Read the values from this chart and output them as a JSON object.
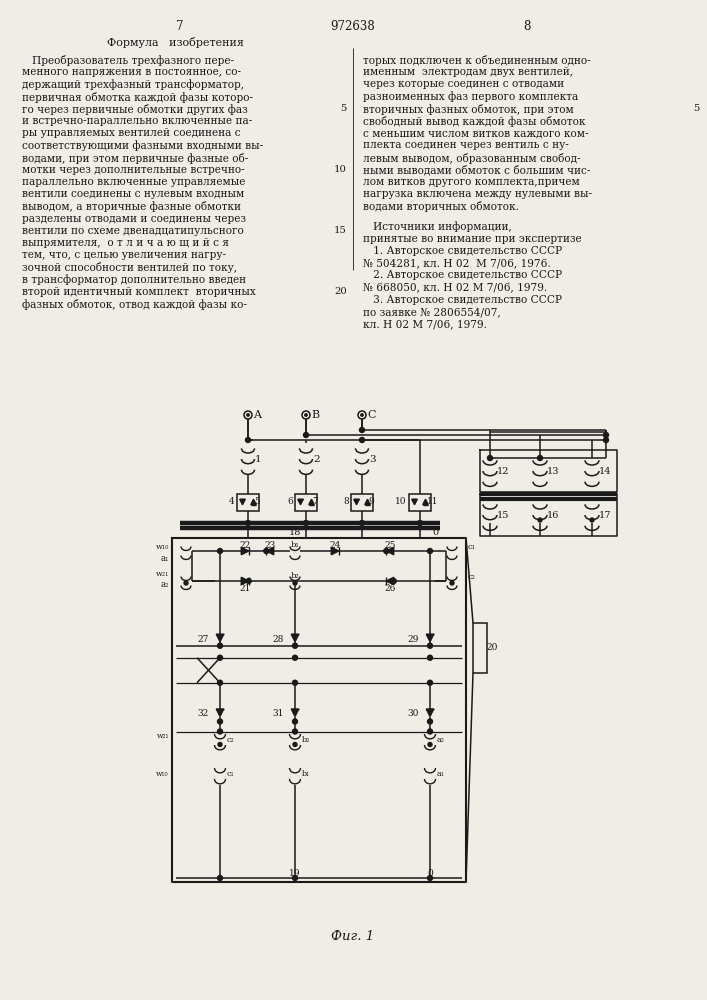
{
  "bg": "#f0ede6",
  "fg": "#1a1a1a",
  "page_left": "7",
  "page_center": "972638",
  "page_right": "8",
  "header": "Формула   изобретения",
  "fig_caption": "Фиг. 1",
  "left_lines": [
    "   Преобразователь трехфазного пере-",
    "менного напряжения в постоянное, со-",
    "держащий трехфазный трансформатор,",
    "первичная обмотка каждой фазы которо-",
    "го через первичные обмотки других фаз",
    "и встречно-параллельно включенные па-",
    "ры управляемых вентилей соединена с",
    "соответствующими фазными входными вы-",
    "водами, при этом первичные фазные об-",
    "мотки через дополнительные встречно-",
    "параллельно включенные управляемые",
    "вентили соединены с нулевым входным",
    "выводом, а вторичные фазные обмотки",
    "разделены отводами и соединены через",
    "вентили по схеме двенадцатипульсного",
    "выпрямителя,  о т л и ч а ю щ и й с я",
    "тем, что, с целью увеличения нагру-",
    "зочной способности вентилей по току,",
    "в трансформатор дополнительно введен",
    "второй идентичный комплект  вторичных",
    "фазных обмоток, отвод каждой фазы ко-"
  ],
  "right_lines": [
    "торых подключен к объединенным одно-",
    "именным  электродам двух вентилей,",
    "через которые соединен с отводами",
    "разноименных фаз первого комплекта",
    "вторичных фазных обмоток, при этом",
    "свободный вывод каждой фазы обмоток",
    "с меньшим числом витков каждого ком-",
    "плекта соединен через вентиль с ну-",
    "левым выводом, образованным свобод-",
    "ными выводами обмоток с большим чис-",
    "лом витков другого комплекта,причем",
    "нагрузка включена между нулевыми вы-",
    "водами вторичных обмоток."
  ],
  "src_lines": [
    "   Источники информации,",
    "принятые во внимание при экспертизе",
    "   1. Авторское свидетельство СССР",
    "№ 504281, кл. Н 02  М 7/06, 1976.",
    "   2. Авторское свидетельство СССР",
    "№ 668050, кл. Н 02 М 7/06, 1979.",
    "   3. Авторское свидетельство СССР",
    "по заявке № 2806554/07,",
    "кл. Н 02 М 7/06, 1979."
  ]
}
